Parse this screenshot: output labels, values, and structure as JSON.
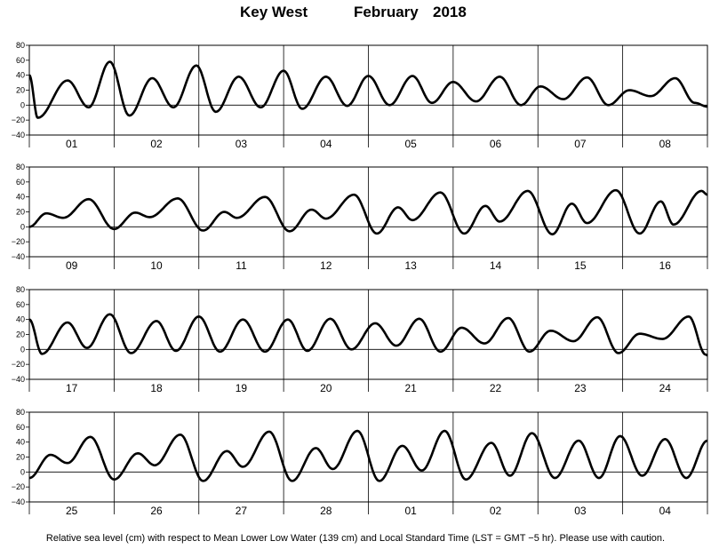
{
  "header": {
    "station": "Key West",
    "month": "February",
    "year": "2018"
  },
  "caption": "Relative sea level (cm) with respect to Mean Lower Low Water (139 cm) and Local Standard Time (LST = GMT −5 hr). Please use with caution.",
  "colors": {
    "line": "#000000",
    "grid": "#000000",
    "background": "#ffffff"
  },
  "chart_data": {
    "type": "line",
    "title": "Key West February 2018",
    "ylabel": "Relative sea level (cm)",
    "ylim": [
      -40,
      80
    ],
    "yticks": [
      -40,
      -20,
      0,
      20,
      40,
      60,
      80
    ],
    "grid": "vertical lines at day boundaries, horizontal line at 0",
    "panels": [
      {
        "days": [
          "01",
          "02",
          "03",
          "04",
          "05",
          "06",
          "07",
          "08"
        ],
        "x": [
          0,
          0.1,
          0.45,
          0.7,
          0.95,
          1.18,
          1.45,
          1.7,
          1.97,
          2.2,
          2.47,
          2.73,
          3.0,
          3.22,
          3.5,
          3.75,
          4.0,
          4.25,
          4.52,
          4.75,
          5.0,
          5.27,
          5.55,
          5.8,
          6.03,
          6.3,
          6.58,
          6.83,
          7.08,
          7.33,
          7.62,
          7.85,
          8.0
        ],
        "y": [
          40,
          -17,
          33,
          -3,
          58,
          -14,
          36,
          -3,
          53,
          -9,
          38,
          -3,
          46,
          -5,
          38,
          -1,
          39,
          0,
          39,
          3,
          31,
          5,
          38,
          0,
          25,
          8,
          37,
          0,
          20,
          12,
          36,
          3,
          -2
        ]
      },
      {
        "days": [
          "09",
          "10",
          "11",
          "12",
          "13",
          "14",
          "15",
          "16"
        ],
        "x": [
          0,
          0.2,
          0.4,
          0.7,
          1.0,
          1.25,
          1.42,
          1.75,
          2.05,
          2.3,
          2.45,
          2.78,
          3.07,
          3.33,
          3.5,
          3.83,
          4.1,
          4.35,
          4.52,
          4.85,
          5.13,
          5.38,
          5.55,
          5.88,
          6.17,
          6.4,
          6.58,
          6.92,
          7.2,
          7.45,
          7.6,
          7.93,
          8.0
        ],
        "y": [
          0,
          18,
          12,
          37,
          -3,
          19,
          13,
          38,
          -5,
          20,
          12,
          40,
          -6,
          23,
          11,
          43,
          -9,
          26,
          9,
          46,
          -9,
          28,
          7,
          48,
          -10,
          31,
          5,
          49,
          -9,
          34,
          3,
          48,
          43
        ]
      },
      {
        "days": [
          "17",
          "18",
          "19",
          "20",
          "21",
          "22",
          "23",
          "24"
        ],
        "x": [
          0,
          0.15,
          0.45,
          0.68,
          0.95,
          1.2,
          1.5,
          1.73,
          2.0,
          2.25,
          2.52,
          2.78,
          3.05,
          3.28,
          3.55,
          3.8,
          4.08,
          4.33,
          4.6,
          4.85,
          5.1,
          5.37,
          5.65,
          5.9,
          6.15,
          6.42,
          6.7,
          6.95,
          7.2,
          7.47,
          7.78,
          7.98,
          8.0
        ],
        "y": [
          40,
          -6,
          36,
          2,
          47,
          -5,
          38,
          -2,
          44,
          -3,
          40,
          -3,
          40,
          -2,
          41,
          0,
          35,
          5,
          41,
          -3,
          29,
          8,
          42,
          -3,
          25,
          11,
          43,
          -5,
          21,
          14,
          44,
          -7,
          -8
        ]
      },
      {
        "days": [
          "25",
          "26",
          "27",
          "28",
          "01",
          "02",
          "03",
          "04"
        ],
        "x": [
          0,
          0.25,
          0.45,
          0.72,
          1.0,
          1.28,
          1.48,
          1.78,
          2.05,
          2.33,
          2.52,
          2.83,
          3.1,
          3.38,
          3.58,
          3.87,
          4.13,
          4.4,
          4.63,
          4.9,
          5.15,
          5.45,
          5.67,
          5.93,
          6.2,
          6.48,
          6.72,
          6.97,
          7.23,
          7.5,
          7.75,
          8.0
        ],
        "y": [
          -8,
          23,
          12,
          47,
          -10,
          25,
          9,
          50,
          -12,
          28,
          7,
          54,
          -12,
          32,
          4,
          55,
          -12,
          35,
          2,
          55,
          -10,
          39,
          -5,
          52,
          -8,
          42,
          -8,
          48,
          -5,
          44,
          -8,
          42
        ]
      }
    ]
  }
}
